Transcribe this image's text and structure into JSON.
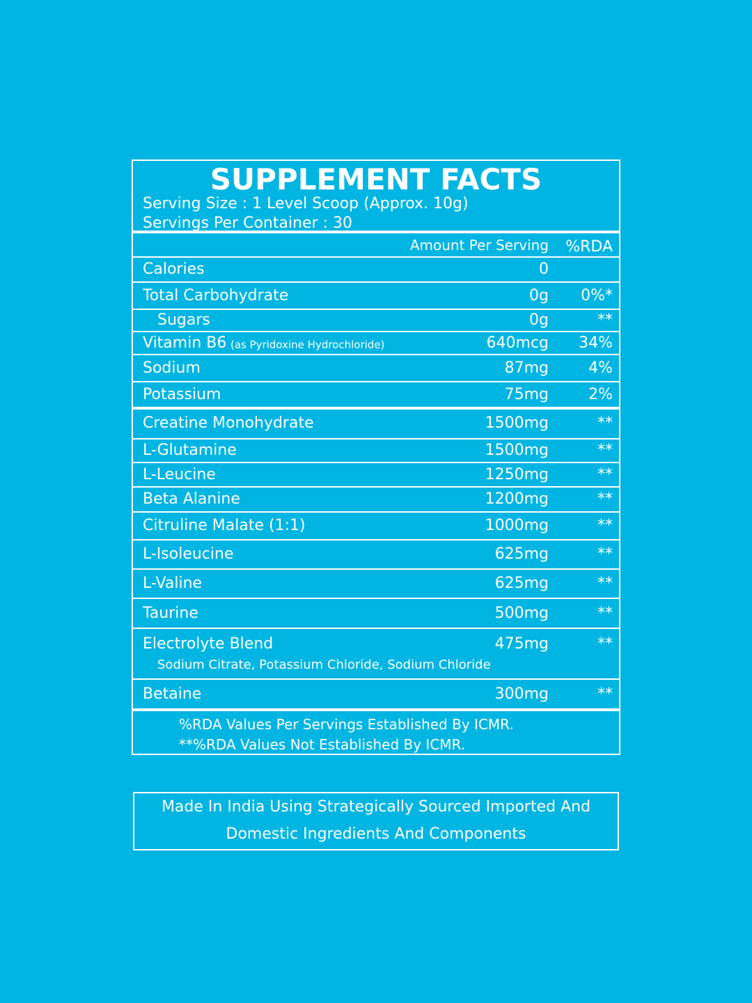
{
  "header": {
    "title": "SUPPLEMENT FACTS",
    "serving_size": "Serving Size : 1 Level Scoop (Approx. 10g)",
    "servings_per_container": "Servings Per Container : 30"
  },
  "table": {
    "columns": [
      "Amount Per Serving",
      "%RDA"
    ],
    "rows": [
      {
        "name": "Calories",
        "amount": "0"
      },
      {
        "name": "Total Carbohydrate",
        "amount": "0g",
        "rda": "0%*"
      },
      {
        "name": "Sugars",
        "amount": "0g",
        "rda": "**"
      },
      {
        "name": "Vitamin B6",
        "note": "(as Pyridoxine Hydrochloride)",
        "amount": "640mcg",
        "rda": "34%"
      },
      {
        "name": "Sodium",
        "amount": "87mg",
        "rda": "4%"
      },
      {
        "name": "Potassium",
        "amount": "75mg",
        "rda": "2%"
      },
      {
        "name": "Creatine Monohydrate",
        "amount": "1500mg",
        "rda": "**"
      },
      {
        "name": "L-Glutamine",
        "amount": "1500mg",
        "rda": "**"
      },
      {
        "name": "L-Leucine",
        "amount": "1250mg",
        "rda": "**"
      },
      {
        "name": "Beta Alanine",
        "amount": "1200mg",
        "rda": "**"
      },
      {
        "name": "Citruline Malate (1:1)",
        "amount": "1000mg",
        "rda": "**"
      },
      {
        "name": "L-Isoleucine",
        "amount": "625mg",
        "rda": "**"
      },
      {
        "name": "L-Valine",
        "amount": "625mg",
        "rda": "**"
      },
      {
        "name": "Taurine",
        "amount": "500mg",
        "rda": "**"
      },
      {
        "name": "Electrolyte Blend",
        "sub": "Sodium Citrate, Potassium Chloride, Sodium Chloride",
        "amount": "475mg",
        "rda": "**"
      },
      {
        "name": "Betaine",
        "amount": "300mg",
        "rda": "**"
      }
    ],
    "footnotes": [
      "%RDA  Values Per Servings Established By ICMR.",
      "**%RDA  Values Not Established By ICMR."
    ]
  },
  "footer": {
    "lines": [
      "Made In India Using Strategically Sourced Imported And",
      "Domestic Ingredients And Components"
    ]
  }
}
